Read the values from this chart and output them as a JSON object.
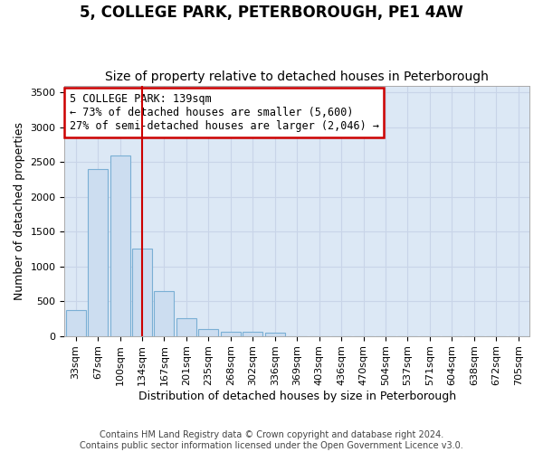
{
  "title": "5, COLLEGE PARK, PETERBOROUGH, PE1 4AW",
  "subtitle": "Size of property relative to detached houses in Peterborough",
  "xlabel": "Distribution of detached houses by size in Peterborough",
  "ylabel": "Number of detached properties",
  "footer_line1": "Contains HM Land Registry data © Crown copyright and database right 2024.",
  "footer_line2": "Contains public sector information licensed under the Open Government Licence v3.0.",
  "categories": [
    "33sqm",
    "67sqm",
    "100sqm",
    "134sqm",
    "167sqm",
    "201sqm",
    "235sqm",
    "268sqm",
    "302sqm",
    "336sqm",
    "369sqm",
    "403sqm",
    "436sqm",
    "470sqm",
    "504sqm",
    "537sqm",
    "571sqm",
    "604sqm",
    "638sqm",
    "672sqm",
    "705sqm"
  ],
  "values": [
    375,
    2400,
    2600,
    1250,
    650,
    260,
    100,
    60,
    55,
    50,
    0,
    0,
    0,
    0,
    0,
    0,
    0,
    0,
    0,
    0,
    0
  ],
  "bar_color": "#ccddf0",
  "bar_edge_color": "#7aafd4",
  "redline_index": 3,
  "annotation_line1": "5 COLLEGE PARK: 139sqm",
  "annotation_line2": "← 73% of detached houses are smaller (5,600)",
  "annotation_line3": "27% of semi-detached houses are larger (2,046) →",
  "annotation_box_facecolor": "#ffffff",
  "annotation_box_edgecolor": "#cc0000",
  "ylim": [
    0,
    3600
  ],
  "yticks": [
    0,
    500,
    1000,
    1500,
    2000,
    2500,
    3000,
    3500
  ],
  "grid_color": "#c8d4e8",
  "fig_bg_color": "#ffffff",
  "plot_bg_color": "#dce8f5",
  "title_fontsize": 12,
  "subtitle_fontsize": 10,
  "redline_color": "#cc0000",
  "tick_fontsize": 8,
  "ylabel_fontsize": 9,
  "xlabel_fontsize": 9,
  "footer_fontsize": 7
}
